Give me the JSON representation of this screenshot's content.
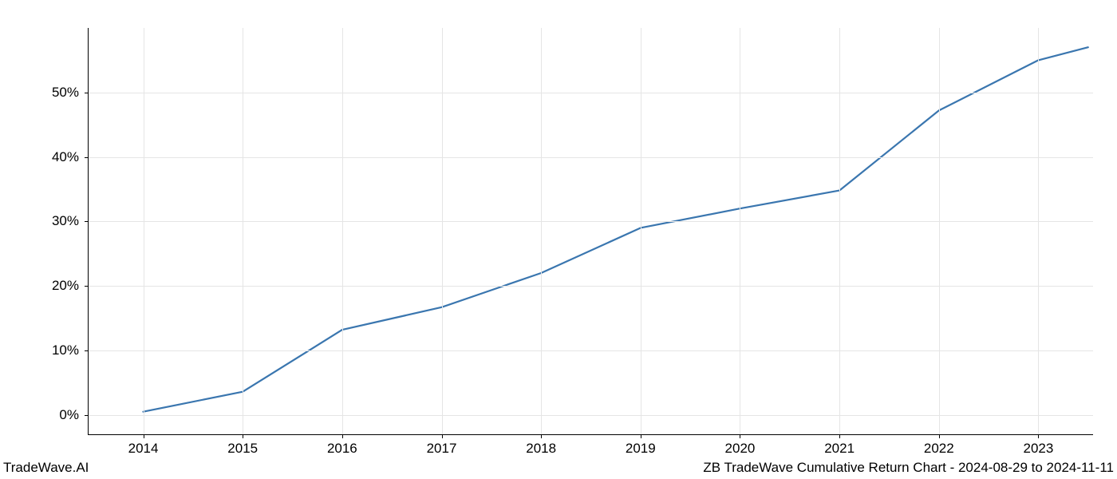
{
  "chart": {
    "type": "line",
    "background_color": "#ffffff",
    "grid_color": "#e5e5e5",
    "axis_color": "#000000",
    "line_color": "#3a76af",
    "line_width": 2.2,
    "tick_fontsize": 17,
    "tick_color": "#000000",
    "x": {
      "ticks": [
        2014,
        2015,
        2016,
        2017,
        2018,
        2019,
        2020,
        2021,
        2022,
        2023
      ],
      "labels": [
        "2014",
        "2015",
        "2016",
        "2017",
        "2018",
        "2019",
        "2020",
        "2021",
        "2022",
        "2023"
      ],
      "min": 2013.45,
      "max": 2023.55
    },
    "y": {
      "ticks": [
        0,
        10,
        20,
        30,
        40,
        50
      ],
      "labels": [
        "0%",
        "10%",
        "20%",
        "30%",
        "40%",
        "50%"
      ],
      "min": -3,
      "max": 60
    },
    "series": {
      "x": [
        2014,
        2015,
        2016,
        2017,
        2018,
        2019,
        2020,
        2021,
        2022,
        2023,
        2023.5
      ],
      "y": [
        0.5,
        3.6,
        13.2,
        16.7,
        22.0,
        29.0,
        32.0,
        34.8,
        47.2,
        55.0,
        57.0
      ]
    }
  },
  "footer": {
    "left": "TradeWave.AI",
    "right": "ZB TradeWave Cumulative Return Chart - 2024-08-29 to 2024-11-11"
  }
}
